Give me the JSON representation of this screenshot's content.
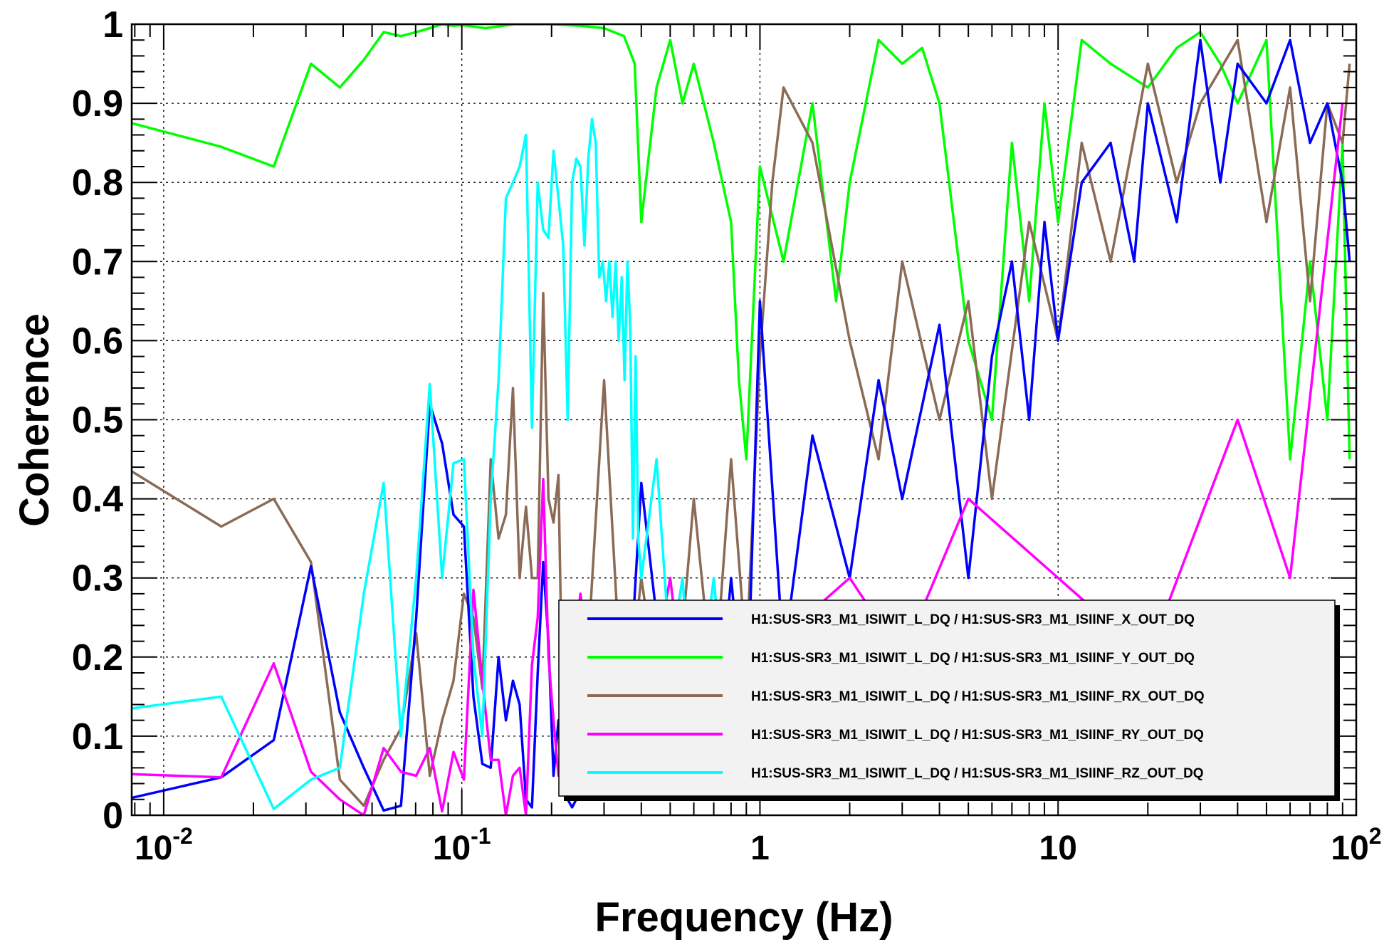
{
  "chart_data": {
    "type": "line",
    "xlabel": "Frequency (Hz)",
    "ylabel": "Coherence",
    "xscale": "log",
    "xlim": [
      0.0078125,
      100
    ],
    "ylim": [
      0,
      1
    ],
    "grid": true,
    "legend_position": "bottom-right",
    "x_ticks": [
      {
        "value": 0.01,
        "label": "10",
        "exponent": "-2"
      },
      {
        "value": 0.1,
        "label": "10",
        "exponent": "-1"
      },
      {
        "value": 1,
        "label": "1",
        "exponent": ""
      },
      {
        "value": 10,
        "label": "10",
        "exponent": ""
      },
      {
        "value": 100,
        "label": "10",
        "exponent": "2"
      }
    ],
    "y_ticks": [
      {
        "value": 0,
        "label": "0"
      },
      {
        "value": 0.1,
        "label": "0.1"
      },
      {
        "value": 0.2,
        "label": "0.2"
      },
      {
        "value": 0.3,
        "label": "0.3"
      },
      {
        "value": 0.4,
        "label": "0.4"
      },
      {
        "value": 0.5,
        "label": "0.5"
      },
      {
        "value": 0.6,
        "label": "0.6"
      },
      {
        "value": 0.7,
        "label": "0.7"
      },
      {
        "value": 0.8,
        "label": "0.8"
      },
      {
        "value": 0.9,
        "label": "0.9"
      },
      {
        "value": 1,
        "label": "1"
      }
    ],
    "series": [
      {
        "name": "H1:SUS-SR3_M1_ISIWIT_L_DQ / H1:SUS-SR3_M1_ISIINF_X_OUT_DQ",
        "color": "#0000ff",
        "x": [
          0.0078,
          0.0156,
          0.0234,
          0.0312,
          0.039,
          0.0469,
          0.0547,
          0.0625,
          0.0703,
          0.0781,
          0.0859,
          0.0938,
          0.1016,
          0.1094,
          0.1172,
          0.125,
          0.1328,
          0.1406,
          0.1484,
          0.1563,
          0.1641,
          0.1719,
          0.1797,
          0.1875,
          0.1953,
          0.2031,
          0.2109,
          0.2188,
          0.2266,
          0.2344,
          0.25,
          0.3,
          0.35,
          0.4,
          0.5,
          0.6,
          0.7,
          0.8,
          0.9,
          1.0,
          1.2,
          1.5,
          2,
          2.5,
          3,
          4,
          5,
          6,
          7,
          8,
          9,
          10,
          12,
          15,
          18,
          20,
          25,
          30,
          35,
          40,
          50,
          60,
          70,
          80,
          90,
          95
        ],
        "y": [
          0.022,
          0.048,
          0.095,
          0.315,
          0.13,
          0.06,
          0.006,
          0.012,
          0.25,
          0.52,
          0.47,
          0.38,
          0.365,
          0.15,
          0.065,
          0.06,
          0.2,
          0.12,
          0.17,
          0.14,
          0.02,
          0.01,
          0.18,
          0.32,
          0.22,
          0.05,
          0.12,
          0.03,
          0.02,
          0.01,
          0.03,
          0.02,
          0.05,
          0.42,
          0.1,
          0.2,
          0.05,
          0.3,
          0.1,
          0.65,
          0.2,
          0.48,
          0.3,
          0.55,
          0.4,
          0.62,
          0.3,
          0.58,
          0.7,
          0.5,
          0.75,
          0.6,
          0.8,
          0.85,
          0.7,
          0.9,
          0.75,
          0.98,
          0.8,
          0.95,
          0.9,
          0.98,
          0.85,
          0.9,
          0.8,
          0.7
        ]
      },
      {
        "name": "H1:SUS-SR3_M1_ISIWIT_L_DQ / H1:SUS-SR3_M1_ISIINF_Y_OUT_DQ",
        "color": "#00ff00",
        "x": [
          0.0078,
          0.0156,
          0.0234,
          0.0312,
          0.039,
          0.0469,
          0.0547,
          0.0625,
          0.0703,
          0.0781,
          0.0859,
          0.0938,
          0.1,
          0.12,
          0.15,
          0.2,
          0.25,
          0.3,
          0.35,
          0.38,
          0.4,
          0.45,
          0.5,
          0.55,
          0.6,
          0.7,
          0.8,
          0.85,
          0.9,
          1.0,
          1.2,
          1.5,
          1.8,
          2.0,
          2.5,
          3,
          3.5,
          4,
          5,
          6,
          7,
          8,
          9,
          10,
          12,
          15,
          20,
          25,
          30,
          35,
          40,
          50,
          60,
          70,
          80,
          90,
          95
        ],
        "y": [
          0.875,
          0.845,
          0.82,
          0.95,
          0.92,
          0.955,
          0.99,
          0.985,
          0.99,
          0.995,
          1.0,
          0.998,
          0.999,
          0.995,
          1.0,
          1.0,
          0.998,
          0.995,
          0.985,
          0.95,
          0.75,
          0.92,
          0.98,
          0.9,
          0.95,
          0.85,
          0.75,
          0.55,
          0.45,
          0.82,
          0.7,
          0.9,
          0.65,
          0.8,
          0.98,
          0.95,
          0.97,
          0.9,
          0.6,
          0.5,
          0.85,
          0.65,
          0.9,
          0.75,
          0.98,
          0.95,
          0.92,
          0.97,
          0.99,
          0.95,
          0.9,
          0.98,
          0.45,
          0.7,
          0.5,
          0.85,
          0.45
        ]
      },
      {
        "name": "H1:SUS-SR3_M1_ISIWIT_L_DQ / H1:SUS-SR3_M1_ISIINF_RX_OUT_DQ",
        "color": "#8b6b55",
        "x": [
          0.0078,
          0.0156,
          0.0234,
          0.0312,
          0.039,
          0.0469,
          0.0547,
          0.0625,
          0.0703,
          0.0781,
          0.0859,
          0.0938,
          0.1016,
          0.1094,
          0.1172,
          0.125,
          0.1328,
          0.1406,
          0.1484,
          0.1563,
          0.1641,
          0.1719,
          0.1797,
          0.1875,
          0.1953,
          0.2031,
          0.2109,
          0.2188,
          0.25,
          0.3,
          0.35,
          0.4,
          0.5,
          0.6,
          0.7,
          0.8,
          0.9,
          1.0,
          1.1,
          1.2,
          1.5,
          2,
          2.5,
          3,
          4,
          5,
          6,
          8,
          10,
          12,
          15,
          20,
          25,
          30,
          40,
          50,
          60,
          70,
          80,
          90,
          95
        ],
        "y": [
          0.435,
          0.365,
          0.4,
          0.32,
          0.045,
          0.012,
          0.07,
          0.11,
          0.23,
          0.05,
          0.12,
          0.17,
          0.28,
          0.25,
          0.16,
          0.45,
          0.35,
          0.38,
          0.54,
          0.3,
          0.39,
          0.3,
          0.3,
          0.66,
          0.4,
          0.37,
          0.43,
          0.08,
          0.05,
          0.55,
          0.1,
          0.3,
          0.05,
          0.4,
          0.15,
          0.45,
          0.2,
          0.58,
          0.8,
          0.92,
          0.85,
          0.6,
          0.45,
          0.7,
          0.5,
          0.65,
          0.4,
          0.75,
          0.6,
          0.85,
          0.7,
          0.95,
          0.8,
          0.9,
          0.98,
          0.75,
          0.92,
          0.65,
          0.9,
          0.85,
          0.95
        ]
      },
      {
        "name": "H1:SUS-SR3_M1_ISIWIT_L_DQ / H1:SUS-SR3_M1_ISIINF_RY_OUT_DQ",
        "color": "#ff00ff",
        "x": [
          0.0078,
          0.0156,
          0.0234,
          0.0312,
          0.039,
          0.0469,
          0.0547,
          0.0625,
          0.0703,
          0.0781,
          0.0859,
          0.0938,
          0.1016,
          0.1094,
          0.1172,
          0.125,
          0.1328,
          0.1406,
          0.1484,
          0.1563,
          0.1641,
          0.1719,
          0.1797,
          0.1875,
          0.1953,
          0.2031,
          0.2109,
          0.25,
          0.3,
          0.4,
          0.5,
          0.6,
          0.8,
          1.0,
          2,
          3,
          5,
          10,
          20,
          40,
          60,
          90
        ],
        "y": [
          0.052,
          0.048,
          0.192,
          0.055,
          0.02,
          0.0,
          0.085,
          0.055,
          0.05,
          0.085,
          0.005,
          0.08,
          0.045,
          0.285,
          0.17,
          0.07,
          0.07,
          0.0,
          0.05,
          0.06,
          0.0,
          0.19,
          0.25,
          0.425,
          0.2,
          0.12,
          0.05,
          0.28,
          0.05,
          0.1,
          0.3,
          0.05,
          0.1,
          0.2,
          0.3,
          0.2,
          0.4,
          0.3,
          0.2,
          0.5,
          0.3,
          0.9
        ]
      },
      {
        "name": "H1:SUS-SR3_M1_ISIWIT_L_DQ / H1:SUS-SR3_M1_ISIINF_RZ_OUT_DQ",
        "color": "#00ffff",
        "x": [
          0.0078,
          0.0156,
          0.0234,
          0.0312,
          0.039,
          0.0469,
          0.0547,
          0.0625,
          0.0703,
          0.0781,
          0.0859,
          0.0938,
          0.1016,
          0.1094,
          0.1172,
          0.125,
          0.1328,
          0.1406,
          0.1484,
          0.1563,
          0.1641,
          0.1719,
          0.1797,
          0.1875,
          0.1953,
          0.2031,
          0.2109,
          0.2188,
          0.2266,
          0.2344,
          0.2422,
          0.25,
          0.2578,
          0.2656,
          0.2734,
          0.2813,
          0.2891,
          0.2969,
          0.3047,
          0.3125,
          0.3203,
          0.3281,
          0.3359,
          0.3438,
          0.3516,
          0.3594,
          0.3672,
          0.375,
          0.3828,
          0.3906,
          0.4,
          0.45,
          0.5,
          0.55,
          0.6,
          0.7,
          0.8,
          1.0,
          2,
          5
        ],
        "y": [
          0.135,
          0.15,
          0.008,
          0.045,
          0.06,
          0.28,
          0.42,
          0.1,
          0.3,
          0.545,
          0.3,
          0.445,
          0.45,
          0.2,
          0.1,
          0.4,
          0.55,
          0.78,
          0.8,
          0.82,
          0.86,
          0.49,
          0.8,
          0.74,
          0.73,
          0.84,
          0.78,
          0.72,
          0.5,
          0.8,
          0.83,
          0.82,
          0.72,
          0.83,
          0.88,
          0.85,
          0.68,
          0.7,
          0.65,
          0.7,
          0.63,
          0.7,
          0.6,
          0.68,
          0.55,
          0.7,
          0.62,
          0.35,
          0.58,
          0.35,
          0.3,
          0.45,
          0.2,
          0.3,
          0.1,
          0.3,
          0.05,
          0.2,
          0.1,
          0.15
        ]
      }
    ]
  }
}
